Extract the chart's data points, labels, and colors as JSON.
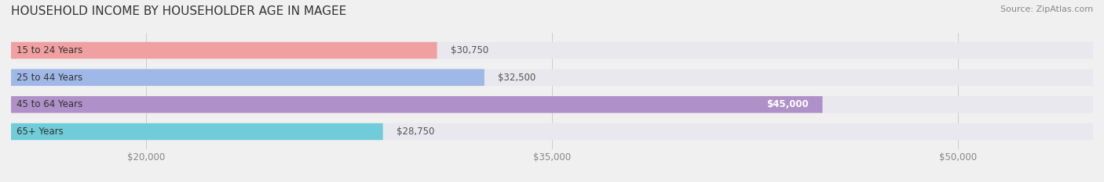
{
  "title": "HOUSEHOLD INCOME BY HOUSEHOLDER AGE IN MAGEE",
  "source": "Source: ZipAtlas.com",
  "categories": [
    "15 to 24 Years",
    "25 to 44 Years",
    "45 to 64 Years",
    "65+ Years"
  ],
  "values": [
    30750,
    32500,
    45000,
    28750
  ],
  "bar_colors": [
    "#f0a0a0",
    "#a0b8e8",
    "#b090c8",
    "#70ccd8"
  ],
  "background_color": "#f0f0f0",
  "bar_background_color": "#e8e8ee",
  "xlim_min": 15000,
  "xlim_max": 55000,
  "xticks": [
    20000,
    35000,
    50000
  ],
  "xtick_labels": [
    "$20,000",
    "$35,000",
    "$50,000"
  ],
  "value_labels": [
    "$30,750",
    "$32,500",
    "$45,000",
    "$28,750"
  ],
  "label_inside": [
    false,
    false,
    true,
    false
  ],
  "title_fontsize": 11,
  "source_fontsize": 8,
  "tick_fontsize": 8.5,
  "bar_label_fontsize": 8.5,
  "cat_label_fontsize": 8.5
}
